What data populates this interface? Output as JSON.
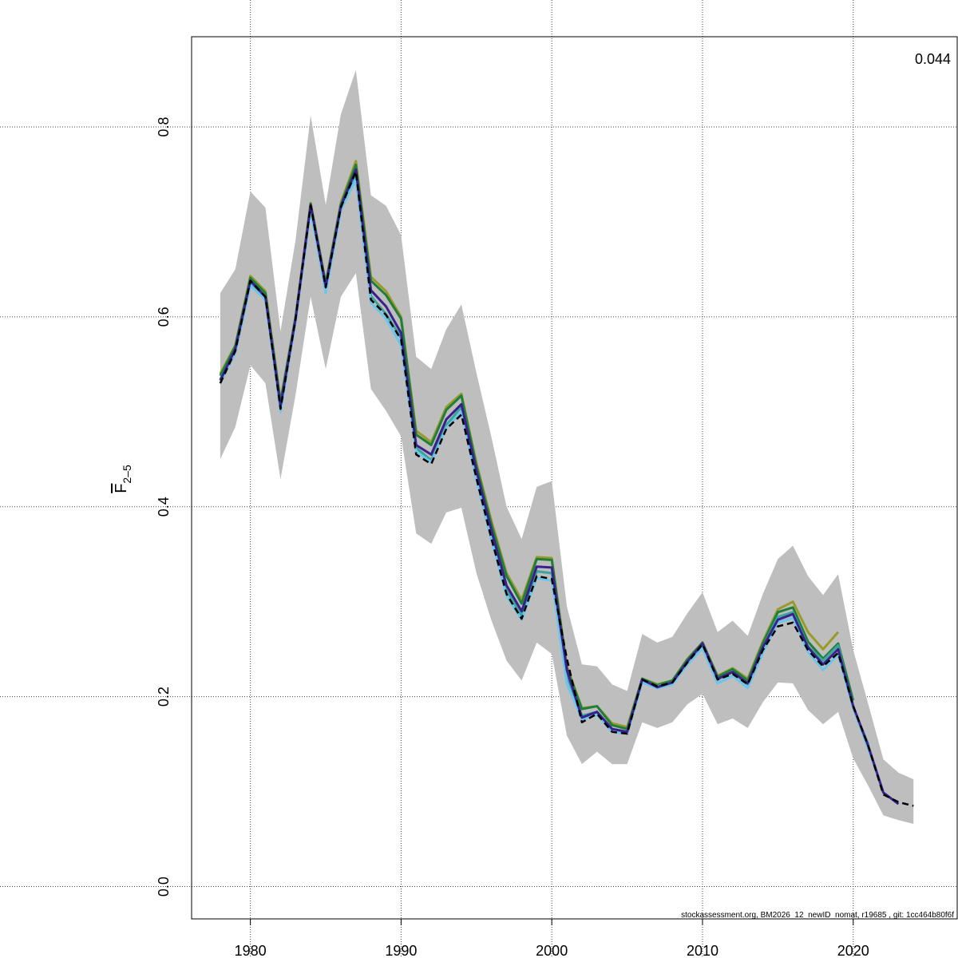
{
  "chart_data": {
    "type": "line",
    "title": "",
    "ylabel_main": "F",
    "ylabel_sub": "2–5",
    "xlabel": "",
    "annotation_topright": "0.044",
    "footer": "stockassessment.org, BM2026_12_newID_nomat, r19685 , git: 1cc464b80f6f",
    "xlim": [
      1976.1,
      2026.9
    ],
    "ylim": [
      -0.034,
      0.895
    ],
    "xticks": [
      1980,
      1990,
      2000,
      2010,
      2020
    ],
    "yticks": [
      0.0,
      0.2,
      0.4,
      0.6,
      0.8
    ],
    "ytick_labels": [
      "0.0",
      "0.2",
      "0.4",
      "0.6",
      "0.8"
    ],
    "grid": true,
    "start_year": 1978,
    "confidence_band": {
      "color": "#bebebe",
      "upper": [
        0.625,
        0.65,
        0.732,
        0.715,
        0.585,
        0.681,
        0.812,
        0.718,
        0.813,
        0.86,
        0.728,
        0.717,
        0.686,
        0.558,
        0.545,
        0.587,
        0.613,
        0.541,
        0.473,
        0.4,
        0.366,
        0.421,
        0.427,
        0.295,
        0.234,
        0.232,
        0.213,
        0.206,
        0.266,
        0.257,
        0.263,
        0.288,
        0.31,
        0.268,
        0.28,
        0.264,
        0.308,
        0.345,
        0.359,
        0.327,
        0.307,
        0.329,
        0.249,
        0.192,
        0.134,
        0.12,
        0.113
      ],
      "lower": [
        0.45,
        0.484,
        0.549,
        0.53,
        0.429,
        0.518,
        0.621,
        0.545,
        0.621,
        0.646,
        0.524,
        0.501,
        0.474,
        0.372,
        0.361,
        0.394,
        0.399,
        0.33,
        0.28,
        0.238,
        0.217,
        0.257,
        0.245,
        0.159,
        0.129,
        0.142,
        0.129,
        0.129,
        0.173,
        0.167,
        0.173,
        0.192,
        0.203,
        0.171,
        0.177,
        0.167,
        0.194,
        0.215,
        0.214,
        0.186,
        0.171,
        0.184,
        0.135,
        0.106,
        0.075,
        0.07,
        0.066
      ]
    },
    "series": [
      {
        "color": "#9a9a2a",
        "dashed": false,
        "values": [
          0.54,
          0.57,
          0.643,
          0.627,
          0.512,
          0.6,
          0.72,
          0.636,
          0.72,
          0.764,
          0.642,
          0.627,
          0.6,
          0.48,
          0.468,
          0.505,
          0.519,
          0.446,
          0.385,
          0.33,
          0.302,
          0.347,
          0.346,
          0.232,
          0.188,
          0.19,
          0.172,
          0.168,
          0.219,
          0.213,
          0.217,
          0.24,
          0.257,
          0.222,
          0.23,
          0.219,
          0.258,
          0.292,
          0.3,
          0.268,
          0.25,
          0.268
        ]
      },
      {
        "color": "#1e7f3a",
        "dashed": false,
        "values": [
          0.538,
          0.569,
          0.641,
          0.625,
          0.51,
          0.6,
          0.719,
          0.635,
          0.718,
          0.76,
          0.638,
          0.623,
          0.598,
          0.476,
          0.465,
          0.502,
          0.517,
          0.443,
          0.381,
          0.327,
          0.298,
          0.345,
          0.344,
          0.23,
          0.187,
          0.19,
          0.17,
          0.166,
          0.219,
          0.212,
          0.217,
          0.239,
          0.257,
          0.221,
          0.229,
          0.217,
          0.256,
          0.289,
          0.294,
          0.258,
          0.24,
          0.256,
          0.196
        ]
      },
      {
        "color": "#3aa59a",
        "dashed": false,
        "values": [
          0.534,
          0.565,
          0.636,
          0.62,
          0.505,
          0.598,
          0.716,
          0.63,
          0.716,
          0.75,
          0.622,
          0.603,
          0.578,
          0.462,
          0.449,
          0.486,
          0.505,
          0.433,
          0.37,
          0.312,
          0.285,
          0.332,
          0.33,
          0.222,
          0.18,
          0.184,
          0.166,
          0.163,
          0.217,
          0.211,
          0.215,
          0.236,
          0.254,
          0.218,
          0.226,
          0.213,
          0.252,
          0.284,
          0.289,
          0.253,
          0.238,
          0.254,
          0.188,
          0.15
        ]
      },
      {
        "color": "#6cc5ea",
        "dashed": false,
        "values": [
          0.53,
          0.562,
          0.633,
          0.618,
          0.5,
          0.595,
          0.712,
          0.625,
          0.712,
          0.745,
          0.615,
          0.598,
          0.57,
          0.458,
          0.447,
          0.483,
          0.5,
          0.428,
          0.365,
          0.306,
          0.281,
          0.325,
          0.322,
          0.214,
          0.176,
          0.181,
          0.163,
          0.161,
          0.215,
          0.209,
          0.213,
          0.234,
          0.251,
          0.214,
          0.222,
          0.209,
          0.246,
          0.278,
          0.283,
          0.247,
          0.228,
          0.244,
          0.188,
          0.145,
          0.1
        ]
      },
      {
        "color": "#3b1f8f",
        "dashed": false,
        "values": [
          0.533,
          0.566,
          0.638,
          0.621,
          0.506,
          0.598,
          0.718,
          0.632,
          0.716,
          0.755,
          0.628,
          0.611,
          0.583,
          0.465,
          0.455,
          0.492,
          0.508,
          0.438,
          0.375,
          0.317,
          0.29,
          0.337,
          0.336,
          0.228,
          0.178,
          0.184,
          0.166,
          0.163,
          0.218,
          0.21,
          0.215,
          0.237,
          0.256,
          0.219,
          0.226,
          0.214,
          0.252,
          0.281,
          0.287,
          0.252,
          0.234,
          0.25,
          0.19,
          0.148,
          0.099,
          0.087
        ]
      },
      {
        "color": "#000000",
        "dashed": true,
        "values": [
          0.53,
          0.564,
          0.638,
          0.621,
          0.503,
          0.598,
          0.717,
          0.631,
          0.715,
          0.753,
          0.618,
          0.602,
          0.576,
          0.455,
          0.445,
          0.482,
          0.497,
          0.43,
          0.366,
          0.308,
          0.282,
          0.327,
          0.324,
          0.24,
          0.173,
          0.182,
          0.163,
          0.161,
          0.218,
          0.211,
          0.215,
          0.236,
          0.255,
          0.218,
          0.224,
          0.213,
          0.249,
          0.274,
          0.278,
          0.249,
          0.232,
          0.246,
          0.19,
          0.148,
          0.097,
          0.089,
          0.085
        ]
      }
    ]
  }
}
